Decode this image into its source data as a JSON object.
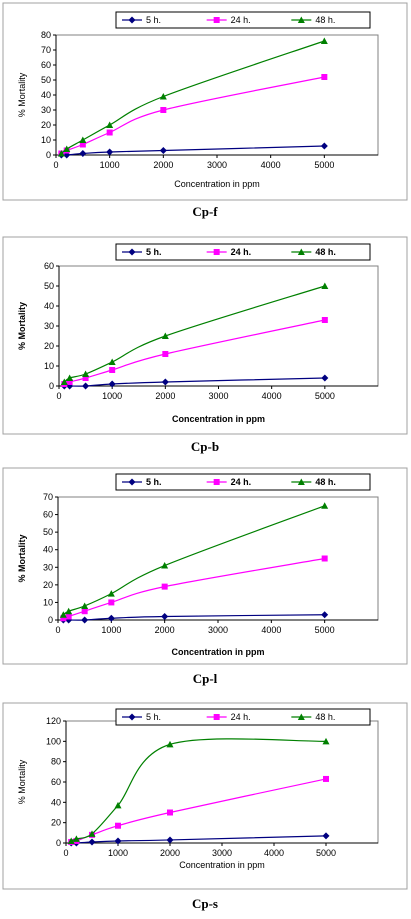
{
  "colors": {
    "5 h.": "#000080",
    "24 h.": "#ff00ff",
    "48 h.": "#008000"
  },
  "chart_data": [
    {
      "type": "line",
      "caption": "Cp-f",
      "xlabel": "Concentration in ppm",
      "ylabel": "% Mortality",
      "xlim": [
        0,
        6000
      ],
      "ylim": [
        0,
        80
      ],
      "xticks": [
        0,
        1000,
        2000,
        3000,
        4000,
        5000
      ],
      "yticks": [
        0,
        10,
        20,
        30,
        40,
        50,
        60,
        70,
        80
      ],
      "legend": "top",
      "axis_titles_bold": false,
      "x": [
        100,
        200,
        500,
        1000,
        2000,
        5000
      ],
      "series": [
        {
          "name": "5 h.",
          "values": [
            0,
            0,
            1,
            2,
            3,
            6
          ]
        },
        {
          "name": "24 h.",
          "values": [
            1,
            3,
            7,
            15,
            30,
            52
          ]
        },
        {
          "name": "48 h.",
          "values": [
            1,
            4,
            10,
            20,
            39,
            76
          ]
        }
      ]
    },
    {
      "type": "line",
      "caption": "Cp-b",
      "xlabel": "Concentration in ppm",
      "ylabel": "% Mortality",
      "xlim": [
        0,
        6000
      ],
      "ylim": [
        0,
        60
      ],
      "xticks": [
        0,
        1000,
        2000,
        3000,
        4000,
        5000
      ],
      "yticks": [
        0,
        10,
        20,
        30,
        40,
        50,
        60
      ],
      "legend": "top",
      "axis_titles_bold": true,
      "x": [
        100,
        200,
        500,
        1000,
        2000,
        5000
      ],
      "series": [
        {
          "name": "5 h.",
          "values": [
            0,
            0,
            0,
            1,
            2,
            4
          ]
        },
        {
          "name": "24 h.",
          "values": [
            1,
            2,
            4,
            8,
            16,
            33
          ]
        },
        {
          "name": "48 h.",
          "values": [
            2,
            4,
            6,
            12,
            25,
            50
          ]
        }
      ]
    },
    {
      "type": "line",
      "caption": "Cp-l",
      "xlabel": "Concentration in ppm",
      "ylabel": "% Mortality",
      "xlim": [
        0,
        6000
      ],
      "ylim": [
        0,
        70
      ],
      "xticks": [
        0,
        1000,
        2000,
        3000,
        4000,
        5000
      ],
      "yticks": [
        0,
        10,
        20,
        30,
        40,
        50,
        60,
        70
      ],
      "legend": "top",
      "axis_titles_bold": true,
      "x": [
        100,
        200,
        500,
        1000,
        2000,
        5000
      ],
      "series": [
        {
          "name": "5 h.",
          "values": [
            0,
            0,
            0,
            1,
            2,
            3
          ]
        },
        {
          "name": "24 h.",
          "values": [
            1,
            2,
            5,
            10,
            19,
            35
          ]
        },
        {
          "name": "48 h.",
          "values": [
            3,
            5,
            8,
            15,
            31,
            65
          ]
        }
      ]
    },
    {
      "type": "line",
      "caption": "Cp-s",
      "xlabel": "Concentration in ppm",
      "ylabel": "% Mortality",
      "xlim": [
        0,
        6000
      ],
      "ylim": [
        0,
        120
      ],
      "xticks": [
        0,
        1000,
        2000,
        3000,
        4000,
        5000
      ],
      "yticks": [
        0,
        20,
        40,
        60,
        80,
        100,
        120
      ],
      "legend": "top",
      "axis_titles_bold": false,
      "x": [
        100,
        200,
        500,
        1000,
        2000,
        5000
      ],
      "series": [
        {
          "name": "5 h.",
          "values": [
            0,
            0,
            1,
            2,
            3,
            7
          ]
        },
        {
          "name": "24 h.",
          "values": [
            1,
            2,
            8,
            17,
            30,
            63
          ]
        },
        {
          "name": "48 h.",
          "values": [
            2,
            4,
            9,
            37,
            97,
            100
          ]
        }
      ]
    }
  ]
}
